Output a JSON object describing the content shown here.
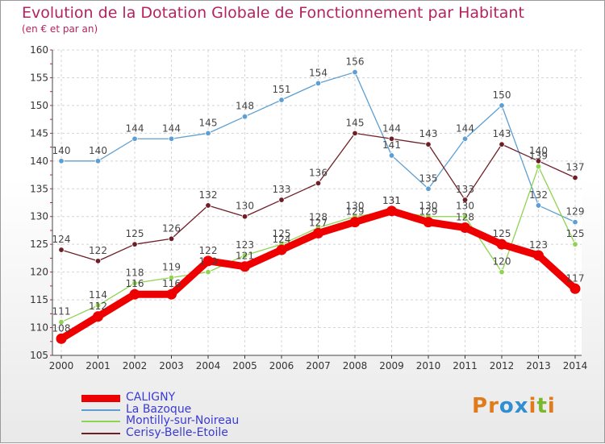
{
  "title": "Evolution de la Dotation Globale de Fonctionnement par Habitant",
  "subtitle": "(en € et par an)",
  "logo": {
    "text": "Proxiti",
    "letters": [
      "P",
      "r",
      "o",
      "x",
      "i",
      "t",
      "i"
    ],
    "colors": [
      "#e07a1a",
      "#e07a1a",
      "#2f8fd0",
      "#2f8fd0",
      "#e07a1a",
      "#78b82a",
      "#e07a1a"
    ]
  },
  "chart_data": {
    "type": "line",
    "title": "Evolution de la Dotation Globale de Fonctionnement par Habitant",
    "subtitle": "(en € et par an)",
    "x": [
      "2000",
      "2001",
      "2002",
      "2003",
      "2004",
      "2005",
      "2006",
      "2007",
      "2008",
      "2009",
      "2010",
      "2011",
      "2012",
      "2013",
      "2014"
    ],
    "ylim": [
      105,
      160
    ],
    "yticks": [
      105,
      110,
      115,
      120,
      125,
      130,
      135,
      140,
      145,
      150,
      155,
      160
    ],
    "grid": true,
    "legend_position": "bottom-left",
    "series": [
      {
        "name": "La Bazoque",
        "color": "#5d9fd3",
        "width": 1.3,
        "marker": 3.3,
        "values": [
          140,
          140,
          144,
          144,
          145,
          148,
          151,
          154,
          156,
          141,
          135,
          144,
          150,
          132,
          129
        ]
      },
      {
        "name": "Cerisy-Belle-Etoile",
        "color": "#6e1f26",
        "width": 1.3,
        "marker": 3.3,
        "values": [
          124,
          122,
          125,
          126,
          132,
          130,
          133,
          136,
          145,
          144,
          143,
          133,
          143,
          140,
          137
        ]
      },
      {
        "name": "Montilly-sur-Noireau",
        "color": "#8ed450",
        "width": 1.3,
        "marker": 3.3,
        "values": [
          111,
          114,
          118,
          119,
          120,
          123,
          125,
          128,
          130,
          131,
          130,
          130,
          120,
          139,
          125
        ]
      },
      {
        "name": "CALIGNY",
        "color": "#ee0000",
        "width": 9,
        "marker": 6.5,
        "values": [
          108,
          112,
          116,
          116,
          122,
          121,
          124,
          127,
          129,
          131,
          129,
          128,
          125,
          123,
          117
        ]
      }
    ],
    "legend": [
      {
        "name": "CALIGNY",
        "color": "#ee0000",
        "thickness": 9
      },
      {
        "name": "La Bazoque",
        "color": "#5d9fd3",
        "thickness": 2
      },
      {
        "name": "Montilly-sur-Noireau",
        "color": "#8ed450",
        "thickness": 2
      },
      {
        "name": "Cerisy-Belle-Etoile",
        "color": "#6e1f26",
        "thickness": 2
      }
    ]
  }
}
